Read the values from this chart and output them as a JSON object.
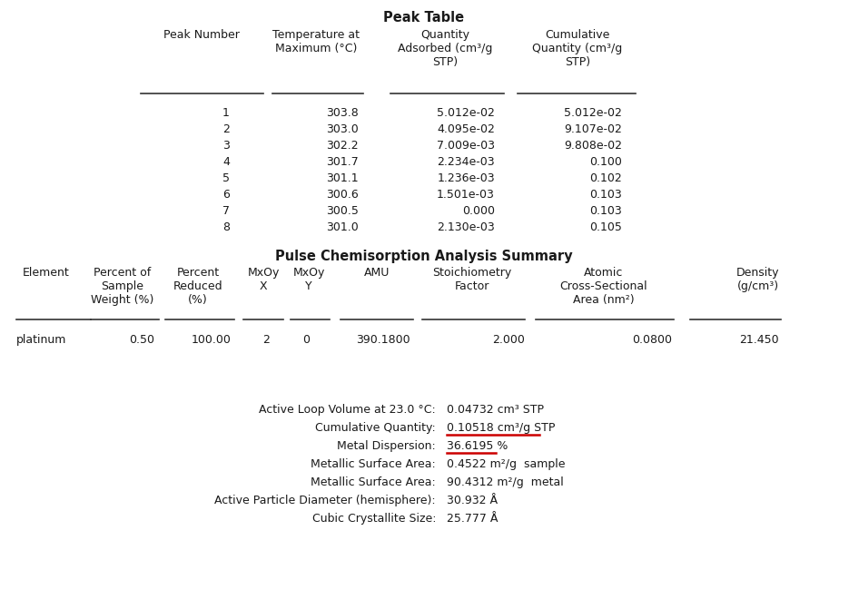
{
  "peak_table_title": "Peak Table",
  "peak_data": [
    [
      "1",
      "303.8",
      "5.012e-02",
      "5.012e-02"
    ],
    [
      "2",
      "303.0",
      "4.095e-02",
      "9.107e-02"
    ],
    [
      "3",
      "302.2",
      "7.009e-03",
      "9.808e-02"
    ],
    [
      "4",
      "301.7",
      "2.234e-03",
      "0.100"
    ],
    [
      "5",
      "301.1",
      "1.236e-03",
      "0.102"
    ],
    [
      "6",
      "300.6",
      "1.501e-03",
      "0.103"
    ],
    [
      "7",
      "300.5",
      "0.000",
      "0.103"
    ],
    [
      "8",
      "301.0",
      "2.130e-03",
      "0.105"
    ]
  ],
  "summary_title": "Pulse Chemisorption Analysis Summary",
  "summary_data": [
    "platinum",
    "0.50",
    "100.00",
    "2",
    "0",
    "390.1800",
    "2.000",
    "0.0800",
    "21.450"
  ],
  "analysis_lines": [
    [
      "Active Loop Volume at 23.0 °C:",
      "0.04732 cm³ STP",
      false
    ],
    [
      "Cumulative Quantity:",
      "0.10518 cm³/g STP",
      true
    ],
    [
      "Metal Dispersion:",
      "36.6195 %",
      true
    ],
    [
      "Metallic Surface Area:",
      "0.4522 m²/g  sample",
      false
    ],
    [
      "Metallic Surface Area:",
      "90.4312 m²/g  metal",
      false
    ],
    [
      "Active Particle Diameter (hemisphere):",
      "30.932 Å",
      false
    ],
    [
      "Cubic Crystallite Size:",
      "25.777 Å",
      false
    ]
  ],
  "bg_color": "#ffffff",
  "text_color": "#1a1a1a",
  "line_color": "#333333",
  "underline_color": "#cc0000",
  "font_size": 9.0,
  "title_font_size": 10.5
}
